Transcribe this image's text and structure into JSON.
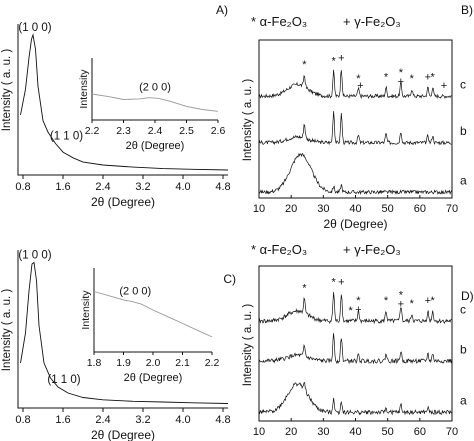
{
  "chart_data": [
    {
      "type": "line",
      "panel": "A)",
      "xlabel": "2θ (Degree)",
      "ylabel": "Intensity ( a. u. )",
      "xticks": [
        "0.8",
        "1.6",
        "2.4",
        "3.2",
        "4.0",
        "4.8"
      ],
      "xlim": [
        0.7,
        4.9
      ],
      "ylim": [
        0,
        1
      ],
      "series": [
        {
          "x": [
            0.75,
            0.85,
            0.92,
            0.97,
            1.0,
            1.05,
            1.1,
            1.2,
            1.3,
            1.45,
            1.6,
            1.8,
            2.0,
            2.4,
            3.0,
            3.6,
            4.2,
            4.9
          ],
          "y": [
            0.42,
            0.6,
            0.82,
            0.95,
            0.98,
            0.88,
            0.62,
            0.38,
            0.3,
            0.22,
            0.16,
            0.12,
            0.09,
            0.07,
            0.055,
            0.045,
            0.04,
            0.035
          ]
        }
      ],
      "peak_labels": [
        {
          "text": "(1 0 0)",
          "x": 1.0,
          "y": 0.98
        },
        {
          "text": "(1 1 0)",
          "x": 1.55,
          "y": 0.22
        }
      ],
      "inset": {
        "xlabel": "2θ (Degree)",
        "ylabel": "Intensity",
        "xticks": [
          "2.2",
          "2.3",
          "2.4",
          "2.5",
          "2.6"
        ],
        "xlim": [
          2.2,
          2.6
        ],
        "ylim": [
          0,
          1
        ],
        "x": [
          2.2,
          2.25,
          2.3,
          2.35,
          2.38,
          2.41,
          2.45,
          2.5,
          2.55,
          2.6
        ],
        "y": [
          0.42,
          0.38,
          0.33,
          0.34,
          0.36,
          0.35,
          0.3,
          0.22,
          0.17,
          0.14
        ],
        "peak_label": {
          "text": "(2 0 0)",
          "x": 2.4,
          "y": 0.36
        }
      }
    },
    {
      "type": "line",
      "panel": "B)",
      "xlabel": "2θ (Degree)",
      "ylabel": "Intensity ( a. u. )",
      "legend": [
        "* α-Fe₂O₃",
        "+ γ-Fe₂O₃"
      ],
      "xticks": [
        "10",
        "20",
        "30",
        "40",
        "50",
        "60",
        "70"
      ],
      "xlim": [
        10,
        70
      ],
      "series": [
        {
          "name": "c",
          "offset": 0.68,
          "peaks": [
            [
              24.1,
              0.08
            ],
            [
              33.2,
              0.17
            ],
            [
              35.6,
              0.19
            ],
            [
              40.9,
              0.05
            ],
            [
              49.5,
              0.06
            ],
            [
              54.1,
              0.09
            ],
            [
              57.5,
              0.05
            ],
            [
              62.5,
              0.06
            ],
            [
              64.0,
              0.06
            ]
          ],
          "hump": [
            22,
            0.08
          ]
        },
        {
          "name": "b",
          "offset": 0.36,
          "peaks": [
            [
              24.1,
              0.1
            ],
            [
              33.2,
              0.22
            ],
            [
              35.6,
              0.2
            ],
            [
              40.9,
              0.05
            ],
            [
              49.5,
              0.06
            ],
            [
              54.1,
              0.08
            ],
            [
              62.5,
              0.05
            ],
            [
              64.0,
              0.05
            ]
          ],
          "hump": [
            22,
            0.04
          ]
        },
        {
          "name": "a",
          "offset": 0.02,
          "peaks": [
            [
              33.2,
              0.04
            ],
            [
              35.6,
              0.05
            ]
          ],
          "hump": [
            23,
            0.26
          ]
        }
      ],
      "markers": [
        {
          "text": "*",
          "x": 24.1
        },
        {
          "text": "*",
          "x": 33.2
        },
        {
          "text": "+",
          "x": 35.6
        },
        {
          "text": "*",
          "x": 40.9
        },
        {
          "text": "+",
          "x": 41.5
        },
        {
          "text": "*",
          "x": 49.5
        },
        {
          "text": "*",
          "x": 54.1
        },
        {
          "text": "+",
          "x": 54.1
        },
        {
          "text": "*",
          "x": 57.5
        },
        {
          "text": "+",
          "x": 62.5
        },
        {
          "text": "*",
          "x": 64.0
        },
        {
          "text": "+",
          "x": 67.5
        }
      ]
    },
    {
      "type": "line",
      "panel": "C)",
      "xlabel": "2θ (Degree)",
      "ylabel": "Intensity ( a. u. )",
      "xticks": [
        "0.8",
        "1.6",
        "2.4",
        "3.2",
        "4.0",
        "4.8"
      ],
      "xlim": [
        0.7,
        4.9
      ],
      "ylim": [
        0,
        1
      ],
      "series": [
        {
          "x": [
            0.75,
            0.85,
            0.92,
            0.98,
            1.02,
            1.07,
            1.12,
            1.22,
            1.35,
            1.5,
            1.7,
            2.0,
            2.4,
            3.0,
            3.6,
            4.2,
            4.9
          ],
          "y": [
            0.3,
            0.5,
            0.78,
            0.96,
            0.97,
            0.85,
            0.55,
            0.3,
            0.2,
            0.14,
            0.1,
            0.07,
            0.055,
            0.045,
            0.04,
            0.035,
            0.03
          ]
        }
      ],
      "peak_labels": [
        {
          "text": "(1 0 0)",
          "x": 1.0,
          "y": 0.97
        },
        {
          "text": "(1 1 0)",
          "x": 1.5,
          "y": 0.14
        }
      ],
      "inset": {
        "xlabel": "2θ (Degree)",
        "ylabel": "Intensity",
        "xticks": [
          "1.8",
          "1.9",
          "2.0",
          "2.1",
          "2.2"
        ],
        "xlim": [
          1.8,
          2.2
        ],
        "ylim": [
          0,
          1
        ],
        "x": [
          1.8,
          1.85,
          1.9,
          1.93,
          1.96,
          2.0,
          2.05,
          2.1,
          2.15,
          2.2
        ],
        "y": [
          0.72,
          0.67,
          0.62,
          0.6,
          0.57,
          0.5,
          0.42,
          0.34,
          0.26,
          0.18
        ],
        "peak_label": {
          "text": "(2 0 0)",
          "x": 1.94,
          "y": 0.6
        }
      }
    },
    {
      "type": "line",
      "panel": "D)",
      "xlabel": "2θ (Degree)",
      "ylabel": "Intensity ( a. u. )",
      "legend": [
        "* α-Fe₂O₃",
        "+ γ-Fe₂O₃"
      ],
      "xticks": [
        "10",
        "20",
        "30",
        "40",
        "50",
        "60",
        "70"
      ],
      "xlim": [
        10,
        70
      ],
      "series": [
        {
          "name": "c",
          "offset": 0.68,
          "peaks": [
            [
              24.1,
              0.1
            ],
            [
              33.2,
              0.2
            ],
            [
              35.6,
              0.2
            ],
            [
              40.9,
              0.07
            ],
            [
              49.5,
              0.07
            ],
            [
              54.1,
              0.11
            ],
            [
              57.5,
              0.05
            ],
            [
              62.5,
              0.07
            ],
            [
              64.0,
              0.07
            ]
          ],
          "hump": [
            22,
            0.07
          ]
        },
        {
          "name": "b",
          "offset": 0.4,
          "peaks": [
            [
              24.1,
              0.07
            ],
            [
              33.2,
              0.19
            ],
            [
              35.6,
              0.17
            ],
            [
              40.9,
              0.04
            ],
            [
              49.5,
              0.05
            ],
            [
              54.1,
              0.07
            ],
            [
              62.5,
              0.05
            ],
            [
              64.0,
              0.05
            ]
          ],
          "hump": [
            22,
            0.04
          ]
        },
        {
          "name": "a",
          "offset": 0.04,
          "peaks": [
            [
              24.1,
              0.04
            ],
            [
              33.2,
              0.1
            ],
            [
              35.6,
              0.08
            ],
            [
              49.5,
              0.03
            ],
            [
              54.1,
              0.05
            ],
            [
              62.5,
              0.03
            ]
          ],
          "hump": [
            22,
            0.2
          ]
        }
      ],
      "markers": [
        {
          "text": "*",
          "x": 24.1
        },
        {
          "text": "*",
          "x": 33.2
        },
        {
          "text": "+",
          "x": 35.6
        },
        {
          "text": "*",
          "x": 40.9
        },
        {
          "text": "+",
          "x": 40.9
        },
        {
          "text": "*",
          "x": 38.5
        },
        {
          "text": "*",
          "x": 49.5
        },
        {
          "text": "*",
          "x": 54.1
        },
        {
          "text": "+",
          "x": 54.1
        },
        {
          "text": "*",
          "x": 57.5
        },
        {
          "text": "+",
          "x": 62.5
        },
        {
          "text": "*",
          "x": 64.0
        }
      ]
    }
  ]
}
